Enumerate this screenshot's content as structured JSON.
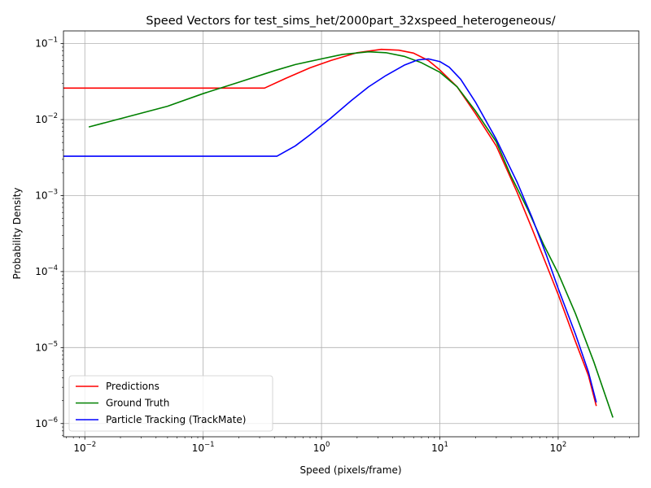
{
  "chart_data": {
    "type": "line",
    "title": "Speed Vectors for test_sims_het/2000part_32xspeed_heterogeneous/",
    "xlabel": "Speed (pixels/frame)",
    "ylabel": "Probability Density",
    "xscale": "log",
    "yscale": "log",
    "xlim": [
      0.0066,
      480
    ],
    "ylim": [
      6.7e-07,
      0.147
    ],
    "grid": true,
    "legend_position": "lower-left",
    "x_ticks": [
      {
        "value": 0.01,
        "base": "10",
        "exp": "−2"
      },
      {
        "value": 0.1,
        "base": "10",
        "exp": "−1"
      },
      {
        "value": 1,
        "base": "10",
        "exp": "0"
      },
      {
        "value": 10,
        "base": "10",
        "exp": "1"
      },
      {
        "value": 100,
        "base": "10",
        "exp": "2"
      }
    ],
    "y_ticks": [
      {
        "value": 1e-06,
        "base": "10",
        "exp": "−6"
      },
      {
        "value": 1e-05,
        "base": "10",
        "exp": "−5"
      },
      {
        "value": 0.0001,
        "base": "10",
        "exp": "−4"
      },
      {
        "value": 0.001,
        "base": "10",
        "exp": "−3"
      },
      {
        "value": 0.01,
        "base": "10",
        "exp": "−2"
      },
      {
        "value": 0.1,
        "base": "10",
        "exp": "−1"
      }
    ],
    "series": [
      {
        "name": "Predictions",
        "color": "#ff0000",
        "points": [
          [
            0.0066,
            0.026
          ],
          [
            0.33,
            0.026
          ],
          [
            0.5,
            0.035
          ],
          [
            0.8,
            0.048
          ],
          [
            1.2,
            0.06
          ],
          [
            2.0,
            0.076
          ],
          [
            3.2,
            0.084
          ],
          [
            4.5,
            0.082
          ],
          [
            6.0,
            0.075
          ],
          [
            8.0,
            0.06
          ],
          [
            10.0,
            0.045
          ],
          [
            14.0,
            0.027
          ],
          [
            20.0,
            0.012
          ],
          [
            30.0,
            0.0045
          ],
          [
            45.0,
            0.0011
          ],
          [
            60.0,
            0.00037
          ],
          [
            80.0,
            0.00012
          ],
          [
            100.0,
            5e-05
          ],
          [
            140.0,
            1.2e-05
          ],
          [
            180.0,
            4.3e-06
          ],
          [
            210.0,
            1.7e-06
          ]
        ]
      },
      {
        "name": "Ground Truth",
        "color": "#008000",
        "points": [
          [
            0.0108,
            0.008
          ],
          [
            0.05,
            0.015
          ],
          [
            0.1,
            0.022
          ],
          [
            0.2,
            0.031
          ],
          [
            0.4,
            0.044
          ],
          [
            0.6,
            0.053
          ],
          [
            1.0,
            0.063
          ],
          [
            1.5,
            0.072
          ],
          [
            2.5,
            0.078
          ],
          [
            3.5,
            0.076
          ],
          [
            5.0,
            0.068
          ],
          [
            7.0,
            0.056
          ],
          [
            10.0,
            0.042
          ],
          [
            14.0,
            0.027
          ],
          [
            20.0,
            0.013
          ],
          [
            30.0,
            0.0051
          ],
          [
            40.0,
            0.0018
          ],
          [
            55.0,
            0.00067
          ],
          [
            75.0,
            0.00023
          ],
          [
            100.0,
            9.5e-05
          ],
          [
            140.0,
            2.8e-05
          ],
          [
            200.0,
            6.5e-06
          ],
          [
            290.0,
            1.2e-06
          ]
        ]
      },
      {
        "name": "Particle Tracking (TrackMate)",
        "color": "#0000ff",
        "points": [
          [
            0.0066,
            0.0033
          ],
          [
            0.42,
            0.0033
          ],
          [
            0.6,
            0.0045
          ],
          [
            0.82,
            0.0065
          ],
          [
            1.2,
            0.0105
          ],
          [
            1.8,
            0.018
          ],
          [
            2.5,
            0.027
          ],
          [
            3.5,
            0.038
          ],
          [
            5.0,
            0.052
          ],
          [
            6.5,
            0.061
          ],
          [
            8.0,
            0.063
          ],
          [
            10.0,
            0.058
          ],
          [
            12.0,
            0.049
          ],
          [
            15.0,
            0.034
          ],
          [
            20.0,
            0.017
          ],
          [
            30.0,
            0.0055
          ],
          [
            45.0,
            0.0015
          ],
          [
            60.0,
            0.00052
          ],
          [
            80.0,
            0.00016
          ],
          [
            100.0,
            6e-05
          ],
          [
            140.0,
            1.5e-05
          ],
          [
            180.0,
            4.8e-06
          ],
          [
            210.0,
            1.9e-06
          ]
        ]
      }
    ]
  }
}
